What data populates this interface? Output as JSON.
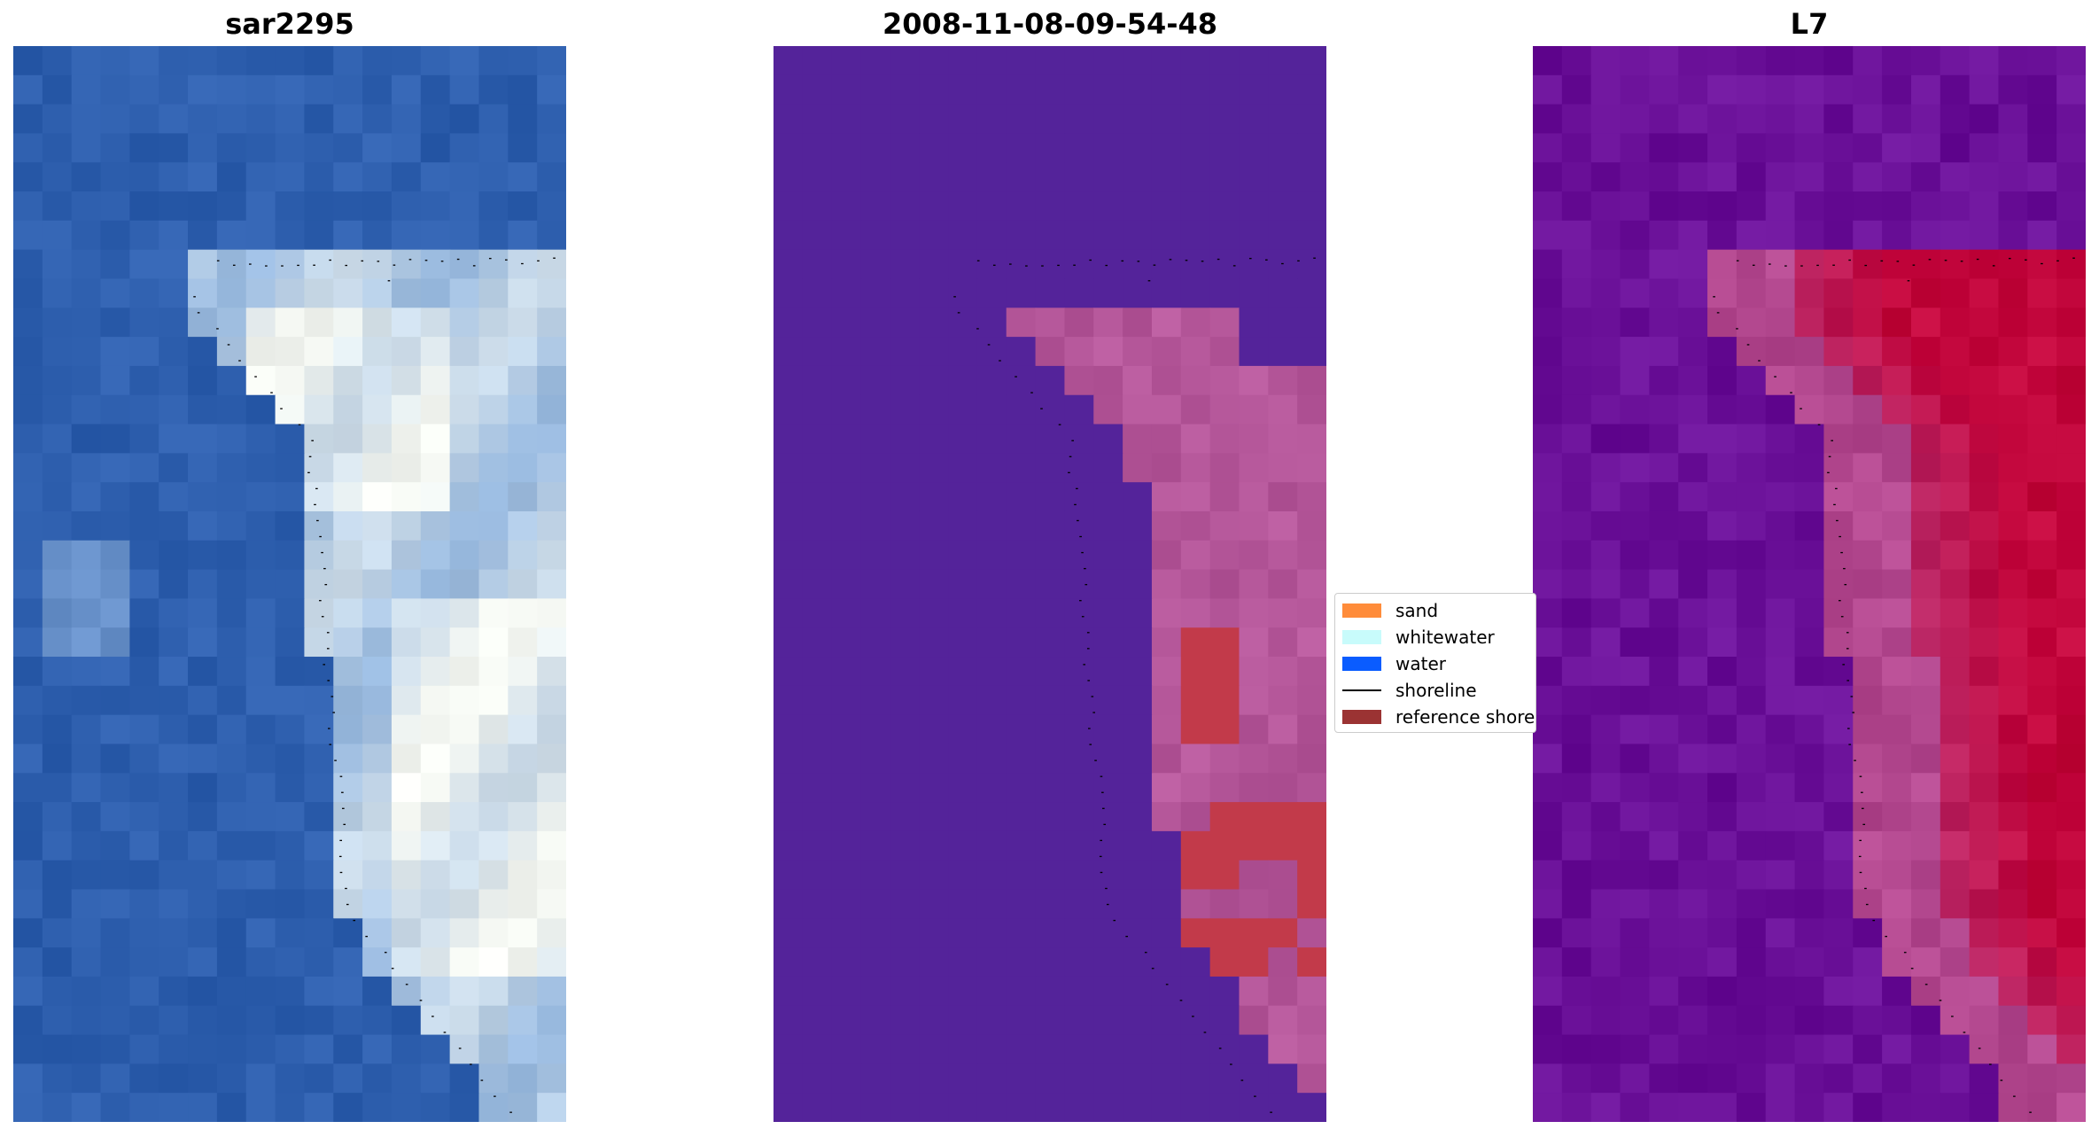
{
  "panels": [
    {
      "title": "sar2295",
      "kind": "rgb",
      "bg_color": "#2e5fae"
    },
    {
      "title": "2008-11-08-09-54-48",
      "kind": "classification",
      "bg_color": "#54239a"
    },
    {
      "title": "L7",
      "kind": "index",
      "bg_color": "#6a1098"
    }
  ],
  "legend": {
    "items": [
      {
        "label": "sand",
        "color": "#ff8c3a",
        "type": "patch"
      },
      {
        "label": "whitewater",
        "color": "#c8fbfb",
        "type": "patch"
      },
      {
        "label": "water",
        "color": "#0a5cff",
        "type": "patch"
      },
      {
        "label": "shoreline",
        "color": "#000000",
        "type": "line"
      },
      {
        "label": "reference shoreline",
        "color": "#9b3333",
        "type": "patch"
      }
    ]
  },
  "colors": {
    "shoreline_dots": "#000000",
    "rgb_water": "#2e5fae",
    "rgb_foam": "#f4f7f2",
    "class_water": "#54239a",
    "class_sand": "#b5579a",
    "class_reference": "#c23a4a",
    "index_water": "#6a1098",
    "index_land": "#c2063c"
  }
}
